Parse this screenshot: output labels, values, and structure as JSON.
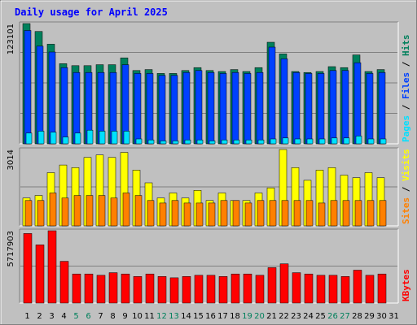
{
  "title": "Daily usage for April 2025",
  "colors": {
    "background": "#c0c0c0",
    "hits": "#00805c",
    "files": "#0040ff",
    "pages": "#00e0ff",
    "visits": "#ffff00",
    "sites": "#ff8000",
    "kbytes": "#ff0000",
    "weekend_label": "#00805c",
    "grid": "#808080"
  },
  "chart_data": [
    {
      "type": "bar",
      "panel": "hits-files-pages",
      "ymax_label": "123101",
      "ylim": [
        0,
        123101
      ],
      "side_labels": [
        "Pages",
        "Files",
        "Hits"
      ],
      "side_label_colors": [
        "#00e0ff",
        "#0040ff",
        "#00805c"
      ],
      "series": [
        {
          "name": "Hits",
          "values": [
            123101,
            115000,
            102000,
            82000,
            80000,
            80000,
            81000,
            81000,
            88000,
            75000,
            76000,
            72000,
            72000,
            75000,
            78000,
            75000,
            74000,
            76000,
            74000,
            78000,
            104000,
            92000,
            74000,
            73000,
            74000,
            79000,
            78000,
            91000,
            74000,
            76000
          ]
        },
        {
          "name": "Files",
          "values": [
            116000,
            100000,
            94000,
            78000,
            73000,
            73000,
            73000,
            73000,
            81000,
            72000,
            72000,
            70000,
            70000,
            73000,
            75000,
            73000,
            72000,
            73000,
            72000,
            73000,
            99000,
            87000,
            73000,
            72000,
            72000,
            75000,
            75000,
            83000,
            72000,
            73000
          ]
        },
        {
          "name": "Pages",
          "values": [
            11000,
            13000,
            12000,
            7000,
            11000,
            14000,
            13000,
            13000,
            13000,
            5000,
            4000,
            3000,
            3000,
            4000,
            4000,
            3000,
            4000,
            4000,
            4000,
            4000,
            5000,
            6000,
            5000,
            5000,
            5000,
            6000,
            6000,
            8000,
            5000,
            5000
          ]
        }
      ]
    },
    {
      "type": "bar",
      "panel": "visits-sites",
      "ymax_label": "3014",
      "ylim": [
        0,
        3014
      ],
      "side_labels": [
        "Sites",
        "Visits"
      ],
      "side_label_colors": [
        "#ff8000",
        "#ffff00"
      ],
      "series": [
        {
          "name": "Visits",
          "values": [
            1100,
            1200,
            2100,
            2400,
            2300,
            2700,
            2800,
            2700,
            2900,
            2200,
            1700,
            1100,
            1300,
            1100,
            1400,
            1000,
            1300,
            1000,
            1000,
            1300,
            1500,
            3014,
            2300,
            1800,
            2200,
            2300,
            2000,
            1900,
            2100,
            1900
          ]
        },
        {
          "name": "Sites",
          "values": [
            1000,
            1000,
            1300,
            1100,
            1200,
            1200,
            1200,
            1100,
            1300,
            1200,
            1000,
            900,
            1000,
            900,
            900,
            900,
            1000,
            1000,
            900,
            1000,
            1000,
            1000,
            1000,
            1000,
            900,
            1000,
            1000,
            1000,
            1000,
            1000
          ]
        }
      ]
    },
    {
      "type": "bar",
      "panel": "kbytes",
      "ymax_label": "5717903",
      "ylim": [
        0,
        5717903
      ],
      "side_labels": [
        "KBytes"
      ],
      "side_label_colors": [
        "#ff0000"
      ],
      "series": [
        {
          "name": "KBytes",
          "values": [
            5500000,
            4600000,
            5717903,
            3300000,
            2300000,
            2300000,
            2200000,
            2400000,
            2300000,
            2100000,
            2300000,
            2100000,
            2000000,
            2100000,
            2200000,
            2200000,
            2100000,
            2300000,
            2300000,
            2200000,
            2800000,
            3100000,
            2400000,
            2300000,
            2200000,
            2200000,
            2100000,
            2600000,
            2200000,
            2300000
          ]
        }
      ]
    }
  ],
  "x_labels": [
    "1",
    "2",
    "3",
    "4",
    "5",
    "6",
    "7",
    "8",
    "9",
    "10",
    "11",
    "12",
    "13",
    "14",
    "15",
    "16",
    "17",
    "18",
    "19",
    "20",
    "21",
    "22",
    "23",
    "24",
    "25",
    "26",
    "27",
    "28",
    "29",
    "30",
    "31"
  ],
  "weekend_days": [
    5,
    6,
    12,
    13,
    19,
    20,
    26,
    27
  ]
}
